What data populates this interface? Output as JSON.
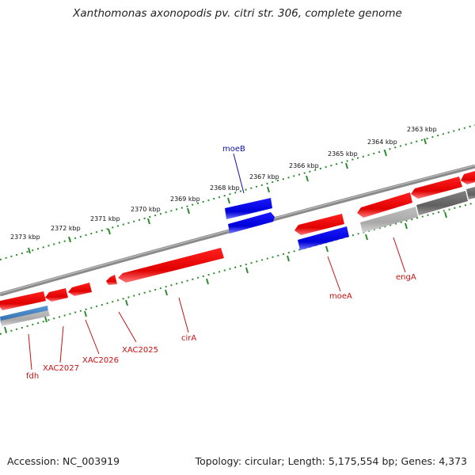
{
  "title": "Xanthomonas axonopodis pv. citri str. 306, complete genome",
  "accession": "Accession: NC_003919",
  "summary": "Topology: circular; Length: 5,175,554 bp; Genes: 4,373",
  "colors": {
    "forward_gene": "#e01010",
    "reverse_gene": "#1010dd",
    "rna_gene": "#3f7fbf",
    "gray_feature": "#a0a0a0",
    "backbone": "#808080",
    "tick": "#2e8b2e",
    "label_red": "#c81010",
    "label_blue": "#1010aa"
  },
  "ruler": {
    "ticks": [
      {
        "label": "2363 kbp"
      },
      {
        "label": "2364 kbp"
      },
      {
        "label": "2365 kbp"
      },
      {
        "label": "2366 kbp"
      },
      {
        "label": "2367 kbp"
      },
      {
        "label": "2368 kbp"
      },
      {
        "label": "2369 kbp"
      },
      {
        "label": "2370 kbp"
      },
      {
        "label": "2371 kbp"
      },
      {
        "label": "2372 kbp"
      },
      {
        "label": "2373 kbp"
      }
    ]
  },
  "gene_labels": [
    {
      "text": "moeB"
    },
    {
      "text": "moeA"
    },
    {
      "text": "engA"
    },
    {
      "text": "cirA"
    },
    {
      "text": "XAC2025"
    },
    {
      "text": "XAC2026"
    },
    {
      "text": "XAC2027"
    },
    {
      "text": "fdh"
    }
  ]
}
